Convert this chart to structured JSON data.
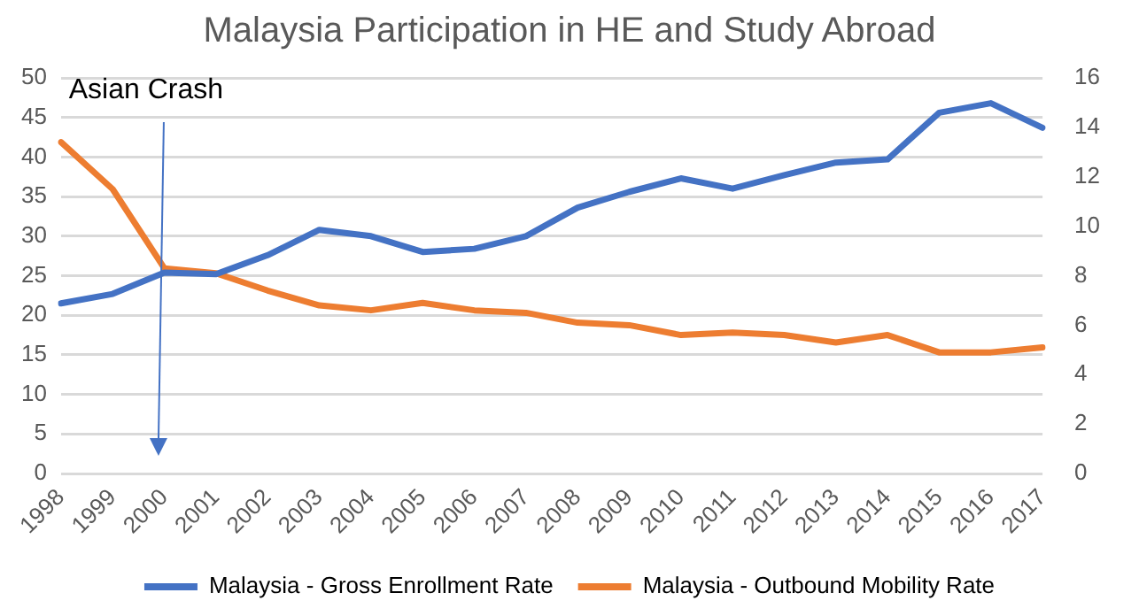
{
  "chart_data": {
    "type": "line",
    "title": "Malaysia Participation in HE and Study Abroad",
    "categories": [
      "1998",
      "1999",
      "2000",
      "2001",
      "2002",
      "2003",
      "2004",
      "2005",
      "2006",
      "2007",
      "2008",
      "2009",
      "2010",
      "2011",
      "2012",
      "2013",
      "2014",
      "2015",
      "2016",
      "2017"
    ],
    "series": [
      {
        "name": "Malaysia - Gross Enrollment Rate",
        "color": "#4472c4",
        "values": [
          21.5,
          22.7,
          25.4,
          25.2,
          27.6,
          30.8,
          30,
          28,
          28.4,
          30,
          33.6,
          35.6,
          37.3,
          36,
          37.7,
          39.3,
          39.7,
          45.6,
          46.8,
          43.7
        ]
      },
      {
        "name": "Malaysia - Outbound Mobility Rate",
        "color": "#ed7d31",
        "axis": "y2",
        "values": [
          13.4,
          11.5,
          8.3,
          8.1,
          7.4,
          6.8,
          6.6,
          6.9,
          6.6,
          6.5,
          6.1,
          6,
          5.6,
          5.7,
          5.6,
          5.3,
          5.6,
          4.9,
          4.9,
          5.1
        ]
      }
    ],
    "ylim": [
      0,
      50
    ],
    "yticks": [
      0,
      5,
      10,
      15,
      20,
      25,
      30,
      35,
      40,
      45,
      50
    ],
    "y2lim": [
      0,
      16
    ],
    "y2ticks": [
      0,
      2,
      4,
      6,
      8,
      10,
      12,
      14,
      16
    ],
    "grid": "y",
    "legend": "bottom",
    "marker": "none",
    "line_style": "solid",
    "annotations": [
      "Asian Crash"
    ]
  }
}
